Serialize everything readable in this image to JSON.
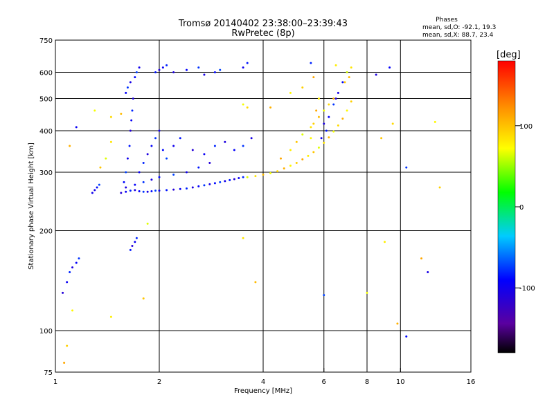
{
  "chart_data": {
    "type": "scatter",
    "title": "Tromsø 20140402 23:38:00–23:39:43",
    "subtitle": "RwPretec (8p)",
    "xlabel": "Frequency [MHz]",
    "ylabel": "Stationary phase Virtual Height [km]",
    "xscale": "log",
    "yscale": "log",
    "xlim": [
      1,
      16
    ],
    "ylim": [
      75,
      750
    ],
    "xticks": [
      1,
      2,
      4,
      6,
      8,
      10,
      16
    ],
    "yticks": [
      75,
      100,
      200,
      300,
      400,
      500,
      600,
      750
    ],
    "x_gridlines": [
      2,
      4,
      6,
      8,
      10
    ],
    "y_gridlines": [
      100,
      200,
      300,
      400,
      500,
      600
    ],
    "grid": true,
    "colorbar": {
      "label": "[deg]",
      "range": [
        -180,
        180
      ],
      "ticks": [
        100,
        0,
        -100
      ]
    },
    "stats": {
      "heading": "Phases",
      "line_o": "mean, sd,O: -92.1, 19.3",
      "line_x": "mean, sd,X: 88.7, 23.4"
    },
    "series": [
      {
        "mode": "O",
        "phase_mean": -92.1,
        "phase_sd": 19.3,
        "points": [
          [
            1.55,
            260
          ],
          [
            1.6,
            262
          ],
          [
            1.65,
            264
          ],
          [
            1.7,
            265
          ],
          [
            1.75,
            263
          ],
          [
            1.8,
            262
          ],
          [
            1.85,
            262
          ],
          [
            1.9,
            263
          ],
          [
            1.95,
            264
          ],
          [
            2.0,
            264
          ],
          [
            2.1,
            265
          ],
          [
            2.2,
            266
          ],
          [
            2.3,
            267
          ],
          [
            2.4,
            268
          ],
          [
            2.5,
            270
          ],
          [
            2.6,
            272
          ],
          [
            2.7,
            274
          ],
          [
            2.8,
            276
          ],
          [
            2.9,
            278
          ],
          [
            3.0,
            280
          ],
          [
            3.1,
            282
          ],
          [
            3.2,
            284
          ],
          [
            3.3,
            286
          ],
          [
            3.4,
            288
          ],
          [
            3.5,
            290
          ],
          [
            1.6,
            270
          ],
          [
            1.7,
            275
          ],
          [
            1.8,
            280
          ],
          [
            1.9,
            285
          ],
          [
            2.0,
            290
          ],
          [
            2.2,
            295
          ],
          [
            2.4,
            300
          ],
          [
            2.6,
            310
          ],
          [
            2.8,
            320
          ],
          [
            1.75,
            300
          ],
          [
            1.8,
            320
          ],
          [
            1.85,
            340
          ],
          [
            1.9,
            360
          ],
          [
            1.95,
            380
          ],
          [
            2.0,
            400
          ],
          [
            2.05,
            350
          ],
          [
            2.1,
            330
          ],
          [
            2.2,
            360
          ],
          [
            2.3,
            380
          ],
          [
            2.5,
            350
          ],
          [
            2.7,
            340
          ],
          [
            2.9,
            360
          ],
          [
            3.1,
            370
          ],
          [
            3.3,
            350
          ],
          [
            3.5,
            360
          ],
          [
            3.7,
            380
          ],
          [
            1.58,
            280
          ],
          [
            1.6,
            300
          ],
          [
            1.62,
            330
          ],
          [
            1.64,
            360
          ],
          [
            1.65,
            400
          ],
          [
            1.66,
            430
          ],
          [
            1.67,
            460
          ],
          [
            1.68,
            500
          ],
          [
            1.6,
            520
          ],
          [
            1.62,
            540
          ],
          [
            1.65,
            560
          ],
          [
            1.7,
            580
          ],
          [
            1.72,
            600
          ],
          [
            1.75,
            620
          ],
          [
            1.95,
            600
          ],
          [
            2.0,
            610
          ],
          [
            2.05,
            620
          ],
          [
            2.1,
            630
          ],
          [
            2.2,
            600
          ],
          [
            2.4,
            610
          ],
          [
            2.6,
            620
          ],
          [
            2.7,
            590
          ],
          [
            2.9,
            600
          ],
          [
            3.0,
            610
          ],
          [
            3.5,
            620
          ],
          [
            3.6,
            640
          ],
          [
            1.05,
            130
          ],
          [
            1.08,
            140
          ],
          [
            1.1,
            150
          ],
          [
            1.12,
            155
          ],
          [
            1.15,
            160
          ],
          [
            1.17,
            165
          ],
          [
            1.3,
            265
          ],
          [
            1.32,
            270
          ],
          [
            1.34,
            275
          ],
          [
            1.28,
            260
          ],
          [
            1.65,
            175
          ],
          [
            1.67,
            180
          ],
          [
            1.7,
            185
          ],
          [
            1.72,
            190
          ],
          [
            6.0,
            420
          ],
          [
            6.2,
            440
          ],
          [
            6.4,
            480
          ],
          [
            6.6,
            520
          ],
          [
            6.8,
            560
          ],
          [
            7.0,
            600
          ],
          [
            5.9,
            380
          ],
          [
            6.1,
            400
          ],
          [
            6.5,
            500
          ],
          [
            1.15,
            410
          ],
          [
            5.5,
            640
          ],
          [
            8.5,
            590
          ],
          [
            9.3,
            620
          ],
          [
            10.4,
            310
          ],
          [
            12.0,
            150
          ],
          [
            10.4,
            96
          ],
          [
            6.0,
            128
          ]
        ]
      },
      {
        "mode": "X",
        "phase_mean": 88.7,
        "phase_sd": 23.4,
        "points": [
          [
            3.6,
            290
          ],
          [
            3.8,
            292
          ],
          [
            4.0,
            295
          ],
          [
            4.2,
            298
          ],
          [
            4.4,
            302
          ],
          [
            4.6,
            308
          ],
          [
            4.8,
            314
          ],
          [
            5.0,
            320
          ],
          [
            5.2,
            328
          ],
          [
            5.4,
            336
          ],
          [
            5.6,
            345
          ],
          [
            5.8,
            356
          ],
          [
            6.0,
            368
          ],
          [
            6.2,
            382
          ],
          [
            6.4,
            398
          ],
          [
            6.6,
            415
          ],
          [
            6.8,
            435
          ],
          [
            7.0,
            460
          ],
          [
            7.2,
            490
          ],
          [
            4.5,
            330
          ],
          [
            4.8,
            350
          ],
          [
            5.0,
            370
          ],
          [
            5.2,
            390
          ],
          [
            5.5,
            410
          ],
          [
            5.8,
            440
          ],
          [
            6.0,
            460
          ],
          [
            6.2,
            480
          ],
          [
            6.4,
            500
          ],
          [
            5.5,
            380
          ],
          [
            5.6,
            420
          ],
          [
            5.7,
            460
          ],
          [
            5.8,
            500
          ],
          [
            6.9,
            560
          ],
          [
            7.0,
            600
          ],
          [
            7.2,
            620
          ],
          [
            7.1,
            580
          ],
          [
            3.5,
            480
          ],
          [
            3.6,
            470
          ],
          [
            4.2,
            470
          ],
          [
            4.8,
            520
          ],
          [
            5.2,
            540
          ],
          [
            5.6,
            580
          ],
          [
            6.5,
            630
          ],
          [
            1.35,
            310
          ],
          [
            1.4,
            330
          ],
          [
            1.45,
            370
          ],
          [
            1.55,
            450
          ],
          [
            1.3,
            460
          ],
          [
            1.45,
            440
          ],
          [
            1.1,
            360
          ],
          [
            1.12,
            115
          ],
          [
            1.08,
            90
          ],
          [
            1.06,
            80
          ],
          [
            1.45,
            110
          ],
          [
            1.8,
            125
          ],
          [
            1.85,
            210
          ],
          [
            3.5,
            190
          ],
          [
            3.8,
            140
          ],
          [
            8.0,
            130
          ],
          [
            9.5,
            420
          ],
          [
            9.8,
            105
          ],
          [
            12.6,
            425
          ],
          [
            13.0,
            270
          ],
          [
            11.5,
            165
          ],
          [
            9.0,
            185
          ],
          [
            8.8,
            380
          ]
        ]
      }
    ]
  }
}
